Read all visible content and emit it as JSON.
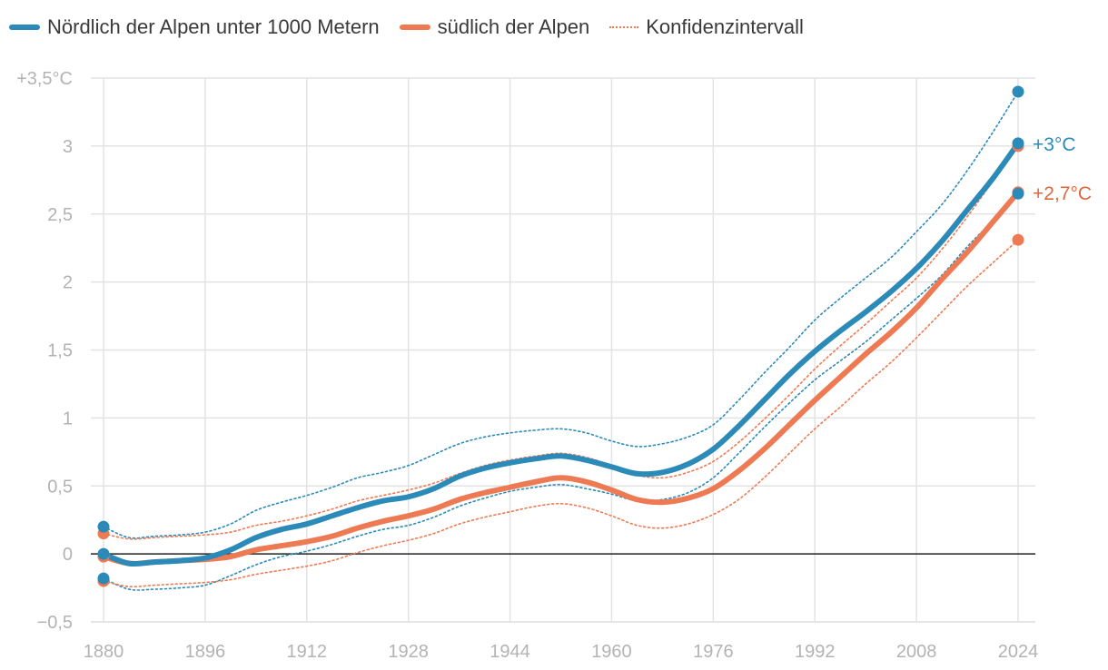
{
  "legend": {
    "items": [
      {
        "label": "Nördlich der Alpen unter 1000 Metern",
        "color": "#2b8ab8",
        "style": "solid"
      },
      {
        "label": "südlich der Alpen",
        "color": "#ee7a53",
        "style": "solid"
      },
      {
        "label": "Konfidenzintervall",
        "color": "#ee7a53",
        "style": "dotted"
      }
    ]
  },
  "chart_data": {
    "type": "line",
    "title": "",
    "xlabel": "",
    "ylabel": "",
    "xlim": [
      1880,
      2024
    ],
    "ylim": [
      -0.5,
      3.5
    ],
    "grid": true,
    "legend_position": "top-left",
    "x_ticks": [
      1880,
      1896,
      1912,
      1928,
      1944,
      1960,
      1976,
      1992,
      2008,
      2024
    ],
    "y_ticks": [
      {
        "value": 3.5,
        "label": "+3,5°C"
      },
      {
        "value": 3,
        "label": "3"
      },
      {
        "value": 2.5,
        "label": "2,5"
      },
      {
        "value": 2,
        "label": "2"
      },
      {
        "value": 1.5,
        "label": "1,5"
      },
      {
        "value": 1,
        "label": "1"
      },
      {
        "value": 0.5,
        "label": "0,5"
      },
      {
        "value": 0,
        "label": "0"
      },
      {
        "value": -0.5,
        "label": "−0,5"
      }
    ],
    "x": [
      1880,
      1884,
      1888,
      1892,
      1896,
      1900,
      1904,
      1908,
      1912,
      1916,
      1920,
      1924,
      1928,
      1932,
      1936,
      1940,
      1944,
      1948,
      1952,
      1956,
      1960,
      1964,
      1968,
      1972,
      1976,
      1980,
      1984,
      1988,
      1992,
      1996,
      2000,
      2004,
      2008,
      2012,
      2016,
      2020,
      2024
    ],
    "series": [
      {
        "name": "Nördlich der Alpen unter 1000 Metern",
        "color": "#2b8ab8",
        "end_label": "+3°C",
        "values": [
          0.0,
          -0.07,
          -0.06,
          -0.05,
          -0.03,
          0.03,
          0.12,
          0.18,
          0.22,
          0.28,
          0.34,
          0.39,
          0.42,
          0.48,
          0.57,
          0.63,
          0.67,
          0.7,
          0.72,
          0.69,
          0.64,
          0.59,
          0.6,
          0.66,
          0.77,
          0.94,
          1.13,
          1.32,
          1.49,
          1.64,
          1.78,
          1.93,
          2.1,
          2.3,
          2.53,
          2.76,
          3.02
        ],
        "upper": [
          0.2,
          0.12,
          0.13,
          0.14,
          0.16,
          0.22,
          0.32,
          0.38,
          0.43,
          0.49,
          0.56,
          0.6,
          0.65,
          0.73,
          0.81,
          0.86,
          0.89,
          0.91,
          0.92,
          0.89,
          0.83,
          0.79,
          0.81,
          0.86,
          0.95,
          1.13,
          1.33,
          1.52,
          1.72,
          1.88,
          2.03,
          2.18,
          2.37,
          2.57,
          2.82,
          3.1,
          3.4
        ],
        "lower": [
          -0.18,
          -0.26,
          -0.26,
          -0.25,
          -0.23,
          -0.16,
          -0.08,
          -0.02,
          0.02,
          0.07,
          0.13,
          0.18,
          0.21,
          0.27,
          0.35,
          0.41,
          0.46,
          0.49,
          0.51,
          0.48,
          0.44,
          0.39,
          0.4,
          0.45,
          0.56,
          0.74,
          0.93,
          1.11,
          1.28,
          1.42,
          1.56,
          1.72,
          1.88,
          2.05,
          2.26,
          2.45,
          2.65
        ]
      },
      {
        "name": "südlich der Alpen",
        "color": "#ee7a53",
        "end_label": "+2,7°C",
        "values": [
          -0.02,
          -0.07,
          -0.06,
          -0.05,
          -0.04,
          -0.02,
          0.03,
          0.06,
          0.09,
          0.13,
          0.19,
          0.24,
          0.28,
          0.33,
          0.4,
          0.45,
          0.49,
          0.53,
          0.56,
          0.53,
          0.47,
          0.4,
          0.38,
          0.41,
          0.48,
          0.61,
          0.77,
          0.95,
          1.13,
          1.3,
          1.47,
          1.63,
          1.81,
          2.02,
          2.22,
          2.44,
          2.66
        ],
        "upper": [
          0.15,
          0.11,
          0.12,
          0.13,
          0.14,
          0.16,
          0.21,
          0.24,
          0.28,
          0.33,
          0.39,
          0.43,
          0.47,
          0.52,
          0.59,
          0.65,
          0.69,
          0.72,
          0.74,
          0.71,
          0.65,
          0.58,
          0.56,
          0.6,
          0.68,
          0.82,
          0.99,
          1.17,
          1.36,
          1.53,
          1.69,
          1.86,
          2.03,
          2.24,
          2.48,
          2.74,
          3.0
        ],
        "lower": [
          -0.2,
          -0.24,
          -0.23,
          -0.22,
          -0.21,
          -0.19,
          -0.15,
          -0.12,
          -0.09,
          -0.05,
          0.01,
          0.06,
          0.1,
          0.15,
          0.22,
          0.27,
          0.31,
          0.35,
          0.37,
          0.34,
          0.28,
          0.21,
          0.19,
          0.22,
          0.29,
          0.4,
          0.56,
          0.74,
          0.92,
          1.08,
          1.25,
          1.41,
          1.59,
          1.78,
          1.97,
          2.14,
          2.31
        ]
      }
    ]
  }
}
